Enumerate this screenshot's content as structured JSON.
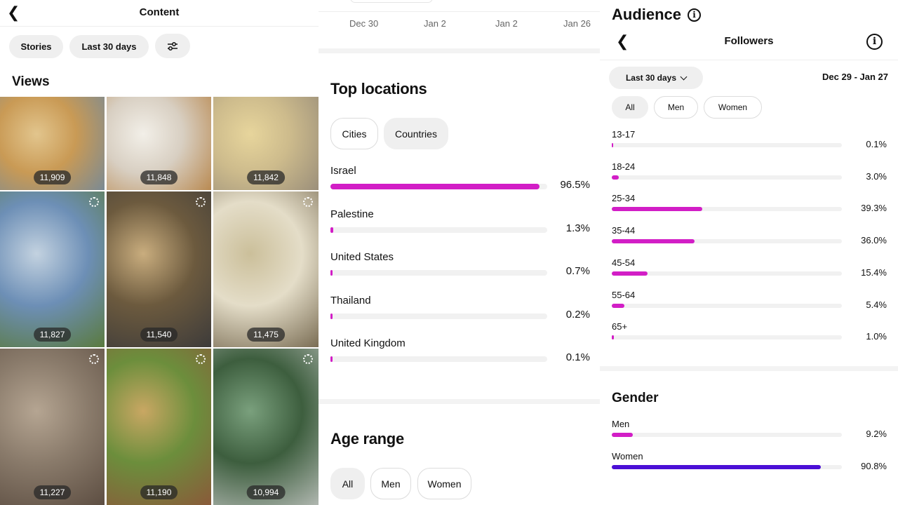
{
  "content": {
    "title": "Content",
    "filters": {
      "stories": "Stories",
      "period": "Last 30 days"
    },
    "views_title": "Views",
    "items": [
      {
        "views": "11,909",
        "colors": [
          "#c99a55",
          "#e2c58d",
          "#7a8a94"
        ]
      },
      {
        "views": "11,848",
        "colors": [
          "#d8cfc2",
          "#f2efe8",
          "#b98a52"
        ]
      },
      {
        "views": "11,842",
        "colors": [
          "#cdbb8c",
          "#e7d59c",
          "#9b8f7a"
        ]
      },
      {
        "views": "11,827",
        "colors": [
          "#6d8fb6",
          "#c3d2e0",
          "#5a7a3e"
        ]
      },
      {
        "views": "11,540",
        "colors": [
          "#6c5a3e",
          "#c9ad7e",
          "#3d3b3a"
        ]
      },
      {
        "views": "11,475",
        "colors": [
          "#e4ddc8",
          "#cbbf9a",
          "#7a6d54"
        ]
      },
      {
        "views": "11,227",
        "colors": [
          "#8a7b6b",
          "#b5a592",
          "#5d4e42"
        ]
      },
      {
        "views": "11,190",
        "colors": [
          "#6c8e3c",
          "#c9a763",
          "#8a5a3a"
        ]
      },
      {
        "views": "10,994",
        "colors": [
          "#3d5e3e",
          "#7aa07d",
          "#b0b7b0"
        ]
      }
    ]
  },
  "timeline": {
    "labels": [
      "Dec 30",
      "Jan 2",
      "Jan 2",
      "Jan 26"
    ]
  },
  "locations": {
    "title": "Top locations",
    "tabs": [
      "Cities",
      "Countries"
    ],
    "rows": [
      {
        "name": "Israel",
        "pct": "96.5%",
        "value": 96.5
      },
      {
        "name": "Palestine",
        "pct": "1.3%",
        "value": 1.3
      },
      {
        "name": "United States",
        "pct": "0.7%",
        "value": 0.7
      },
      {
        "name": "Thailand",
        "pct": "0.2%",
        "value": 0.2
      },
      {
        "name": "United Kingdom",
        "pct": "0.1%",
        "value": 0.1
      }
    ]
  },
  "age_range": {
    "title": "Age range",
    "tabs": [
      "All",
      "Men",
      "Women"
    ]
  },
  "audience": {
    "title": "Audience",
    "subtitle": "Followers",
    "period": "Last 30 days",
    "date_range": "Dec 29 - Jan 27",
    "tabs": [
      "All",
      "Men",
      "Women"
    ],
    "ages": [
      {
        "label": "13-17",
        "pct": "0.1%",
        "value": 0.1
      },
      {
        "label": "18-24",
        "pct": "3.0%",
        "value": 3.0
      },
      {
        "label": "25-34",
        "pct": "39.3%",
        "value": 39.3
      },
      {
        "label": "35-44",
        "pct": "36.0%",
        "value": 36.0
      },
      {
        "label": "45-54",
        "pct": "15.4%",
        "value": 15.4
      },
      {
        "label": "55-64",
        "pct": "5.4%",
        "value": 5.4
      },
      {
        "label": "65+",
        "pct": "1.0%",
        "value": 1.0
      }
    ],
    "gender_title": "Gender",
    "gender": [
      {
        "label": "Men",
        "pct": "9.2%",
        "value": 9.2,
        "color": "#d21ec6"
      },
      {
        "label": "Women",
        "pct": "90.8%",
        "value": 90.8,
        "color": "#4b0fd6"
      }
    ]
  }
}
